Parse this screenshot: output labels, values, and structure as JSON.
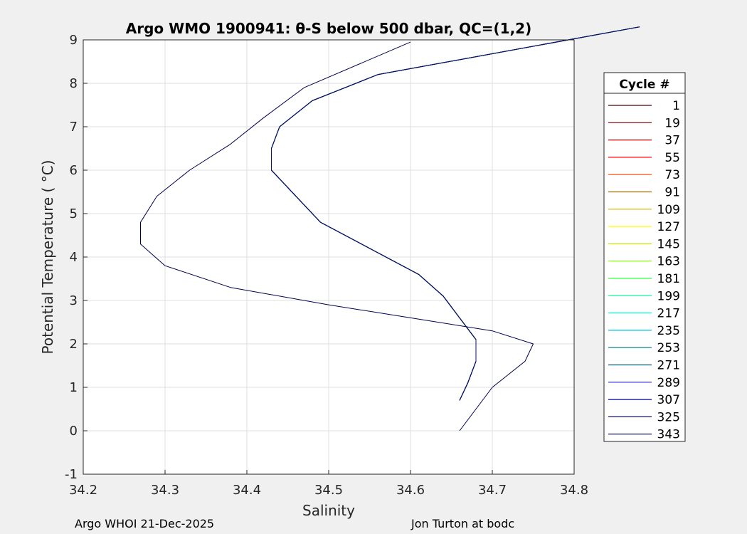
{
  "chart_data": {
    "type": "line",
    "title": "Argo WMO 1900941: θ-S below 500 dbar,  QC=(1,2)",
    "xlabel": "Salinity",
    "ylabel": "Potential Temperature ( °C)",
    "xlim": [
      34.2,
      34.8
    ],
    "ylim": [
      -1,
      9
    ],
    "xticks": [
      "34.2",
      "34.3",
      "34.4",
      "34.5",
      "34.6",
      "34.7",
      "34.8"
    ],
    "yticks": [
      "-1",
      "0",
      "1",
      "2",
      "3",
      "4",
      "5",
      "6",
      "7",
      "8",
      "9"
    ],
    "grid": true,
    "legend_title": "Cycle #",
    "legend_position": "right",
    "series": [
      {
        "name": "1",
        "color": "#500000",
        "s": [
          34.88,
          34.56,
          34.48,
          34.44,
          34.43,
          34.43,
          34.46,
          34.49,
          34.55,
          34.61,
          34.64,
          34.66,
          34.68,
          34.68,
          34.67,
          34.66
        ],
        "t": [
          9.3,
          8.2,
          7.6,
          7.0,
          6.5,
          6.0,
          5.4,
          4.8,
          4.2,
          3.6,
          3.1,
          2.6,
          2.1,
          1.6,
          1.1,
          0.7
        ]
      },
      {
        "name": "19",
        "color": "#7c0000",
        "s": [
          34.88,
          34.56,
          34.48,
          34.44,
          34.43,
          34.43,
          34.46,
          34.49,
          34.55,
          34.61,
          34.64,
          34.66,
          34.68,
          34.68,
          34.67,
          34.66
        ],
        "t": [
          9.3,
          8.2,
          7.6,
          7.0,
          6.5,
          6.0,
          5.4,
          4.8,
          4.2,
          3.6,
          3.1,
          2.6,
          2.1,
          1.6,
          1.1,
          0.7
        ]
      },
      {
        "name": "37",
        "color": "#c00000",
        "s": [
          34.88,
          34.56,
          34.48,
          34.44,
          34.43,
          34.43,
          34.46,
          34.49,
          34.55,
          34.61,
          34.64,
          34.66,
          34.68,
          34.68,
          34.67,
          34.66
        ],
        "t": [
          9.3,
          8.2,
          7.6,
          7.0,
          6.5,
          6.0,
          5.4,
          4.8,
          4.2,
          3.6,
          3.1,
          2.6,
          2.1,
          1.6,
          1.1,
          0.7
        ]
      },
      {
        "name": "55",
        "color": "#ff0000",
        "s": [
          34.88,
          34.56,
          34.48,
          34.44,
          34.43,
          34.43,
          34.46,
          34.49,
          34.55,
          34.61,
          34.64,
          34.66,
          34.68,
          34.68,
          34.67,
          34.66
        ],
        "t": [
          9.3,
          8.2,
          7.6,
          7.0,
          6.5,
          6.0,
          5.4,
          4.8,
          4.2,
          3.6,
          3.1,
          2.6,
          2.1,
          1.6,
          1.1,
          0.7
        ]
      },
      {
        "name": "73",
        "color": "#ff4000",
        "s": [
          34.88,
          34.56,
          34.48,
          34.44,
          34.43,
          34.43,
          34.46,
          34.49,
          34.55,
          34.61,
          34.64,
          34.66,
          34.68,
          34.68,
          34.67,
          34.66
        ],
        "t": [
          9.3,
          8.2,
          7.6,
          7.0,
          6.5,
          6.0,
          5.4,
          4.8,
          4.2,
          3.6,
          3.1,
          2.6,
          2.1,
          1.6,
          1.1,
          0.7
        ]
      },
      {
        "name": "91",
        "color": "#9c6a00",
        "s": [
          34.88,
          34.56,
          34.48,
          34.44,
          34.43,
          34.43,
          34.46,
          34.49,
          34.55,
          34.61,
          34.64,
          34.66,
          34.68,
          34.68,
          34.67,
          34.66
        ],
        "t": [
          9.3,
          8.2,
          7.6,
          7.0,
          6.5,
          6.0,
          5.4,
          4.8,
          4.2,
          3.6,
          3.1,
          2.6,
          2.1,
          1.6,
          1.1,
          0.7
        ]
      },
      {
        "name": "109",
        "color": "#d9b000",
        "s": [
          34.88,
          34.56,
          34.48,
          34.44,
          34.43,
          34.43,
          34.46,
          34.49,
          34.55,
          34.61,
          34.64,
          34.66,
          34.68,
          34.68,
          34.67,
          34.66
        ],
        "t": [
          9.3,
          8.2,
          7.6,
          7.0,
          6.5,
          6.0,
          5.4,
          4.8,
          4.2,
          3.6,
          3.1,
          2.6,
          2.1,
          1.6,
          1.1,
          0.7
        ]
      },
      {
        "name": "127",
        "color": "#ffff00",
        "s": [
          34.88,
          34.56,
          34.48,
          34.44,
          34.43,
          34.43,
          34.46,
          34.49,
          34.55,
          34.61,
          34.64,
          34.66,
          34.68,
          34.68,
          34.67,
          34.66
        ],
        "t": [
          9.3,
          8.2,
          7.6,
          7.0,
          6.5,
          6.0,
          5.4,
          4.8,
          4.2,
          3.6,
          3.1,
          2.6,
          2.1,
          1.6,
          1.1,
          0.7
        ]
      },
      {
        "name": "145",
        "color": "#c6e900",
        "s": [
          34.88,
          34.56,
          34.48,
          34.44,
          34.43,
          34.43,
          34.46,
          34.49,
          34.55,
          34.61,
          34.64,
          34.66,
          34.68,
          34.68,
          34.67,
          34.66
        ],
        "t": [
          9.3,
          8.2,
          7.6,
          7.0,
          6.5,
          6.0,
          5.4,
          4.8,
          4.2,
          3.6,
          3.1,
          2.6,
          2.1,
          1.6,
          1.1,
          0.7
        ]
      },
      {
        "name": "163",
        "color": "#80ff00",
        "s": [
          34.88,
          34.56,
          34.48,
          34.44,
          34.43,
          34.43,
          34.46,
          34.49,
          34.55,
          34.61,
          34.64,
          34.66,
          34.68,
          34.68,
          34.67,
          34.66
        ],
        "t": [
          9.3,
          8.2,
          7.6,
          7.0,
          6.5,
          6.0,
          5.4,
          4.8,
          4.2,
          3.6,
          3.1,
          2.6,
          2.1,
          1.6,
          1.1,
          0.7
        ]
      },
      {
        "name": "181",
        "color": "#30ff40",
        "s": [
          34.88,
          34.56,
          34.48,
          34.44,
          34.43,
          34.43,
          34.46,
          34.49,
          34.55,
          34.61,
          34.64,
          34.66,
          34.68,
          34.68,
          34.67,
          34.66
        ],
        "t": [
          9.3,
          8.2,
          7.6,
          7.0,
          6.5,
          6.0,
          5.4,
          4.8,
          4.2,
          3.6,
          3.1,
          2.6,
          2.1,
          1.6,
          1.1,
          0.7
        ]
      },
      {
        "name": "199",
        "color": "#00ff90",
        "s": [
          34.88,
          34.56,
          34.48,
          34.44,
          34.43,
          34.43,
          34.46,
          34.49,
          34.55,
          34.61,
          34.64,
          34.66,
          34.68,
          34.68,
          34.67,
          34.66
        ],
        "t": [
          9.3,
          8.2,
          7.6,
          7.0,
          6.5,
          6.0,
          5.4,
          4.8,
          4.2,
          3.6,
          3.1,
          2.6,
          2.1,
          1.6,
          1.1,
          0.7
        ]
      },
      {
        "name": "217",
        "color": "#00ffd8",
        "s": [
          34.88,
          34.56,
          34.48,
          34.44,
          34.43,
          34.43,
          34.46,
          34.49,
          34.55,
          34.61,
          34.64,
          34.66,
          34.68,
          34.68,
          34.67,
          34.66
        ],
        "t": [
          9.3,
          8.2,
          7.6,
          7.0,
          6.5,
          6.0,
          5.4,
          4.8,
          4.2,
          3.6,
          3.1,
          2.6,
          2.1,
          1.6,
          1.1,
          0.7
        ]
      },
      {
        "name": "235",
        "color": "#00c0e8",
        "s": [
          34.88,
          34.56,
          34.48,
          34.44,
          34.43,
          34.43,
          34.46,
          34.49,
          34.55,
          34.61,
          34.64,
          34.66,
          34.68,
          34.68,
          34.67,
          34.66
        ],
        "t": [
          9.3,
          8.2,
          7.6,
          7.0,
          6.5,
          6.0,
          5.4,
          4.8,
          4.2,
          3.6,
          3.1,
          2.6,
          2.1,
          1.6,
          1.1,
          0.7
        ]
      },
      {
        "name": "253",
        "color": "#007a8c",
        "s": [
          34.88,
          34.56,
          34.48,
          34.44,
          34.43,
          34.43,
          34.46,
          34.49,
          34.55,
          34.61,
          34.64,
          34.66,
          34.68,
          34.68,
          34.67,
          34.66
        ],
        "t": [
          9.3,
          8.2,
          7.6,
          7.0,
          6.5,
          6.0,
          5.4,
          4.8,
          4.2,
          3.6,
          3.1,
          2.6,
          2.1,
          1.6,
          1.1,
          0.7
        ]
      },
      {
        "name": "271",
        "color": "#005a78",
        "s": [
          34.88,
          34.56,
          34.48,
          34.44,
          34.43,
          34.43,
          34.46,
          34.49,
          34.55,
          34.61,
          34.64,
          34.66,
          34.68,
          34.68,
          34.67,
          34.66
        ],
        "t": [
          9.3,
          8.2,
          7.6,
          7.0,
          6.5,
          6.0,
          5.4,
          4.8,
          4.2,
          3.6,
          3.1,
          2.6,
          2.1,
          1.6,
          1.1,
          0.7
        ]
      },
      {
        "name": "289",
        "color": "#2020c8",
        "s": [
          34.88,
          34.56,
          34.48,
          34.44,
          34.43,
          34.43,
          34.46,
          34.49,
          34.55,
          34.61,
          34.64,
          34.66,
          34.68,
          34.68,
          34.67,
          34.66
        ],
        "t": [
          9.3,
          8.2,
          7.6,
          7.0,
          6.5,
          6.0,
          5.4,
          4.8,
          4.2,
          3.6,
          3.1,
          2.6,
          2.1,
          1.6,
          1.1,
          0.7
        ]
      },
      {
        "name": "307",
        "color": "#0000a0",
        "s": [
          34.88,
          34.56,
          34.48,
          34.44,
          34.43,
          34.43,
          34.46,
          34.49,
          34.55,
          34.61,
          34.64,
          34.66,
          34.68,
          34.68,
          34.67,
          34.66
        ],
        "t": [
          9.3,
          8.2,
          7.6,
          7.0,
          6.5,
          6.0,
          5.4,
          4.8,
          4.2,
          3.6,
          3.1,
          2.6,
          2.1,
          1.6,
          1.1,
          0.7
        ]
      },
      {
        "name": "325",
        "color": "#101060",
        "s": [
          34.88,
          34.56,
          34.48,
          34.44,
          34.43,
          34.43,
          34.46,
          34.49,
          34.55,
          34.61,
          34.64,
          34.66,
          34.68,
          34.68,
          34.67,
          34.66
        ],
        "t": [
          9.3,
          8.2,
          7.6,
          7.0,
          6.5,
          6.0,
          5.4,
          4.8,
          4.2,
          3.6,
          3.1,
          2.6,
          2.1,
          1.6,
          1.1,
          0.7
        ]
      },
      {
        "name": "343",
        "color": "#000050",
        "s": [
          34.6,
          34.47,
          34.42,
          34.38,
          34.33,
          34.29,
          34.27,
          34.27,
          34.3,
          34.38,
          34.5,
          34.6,
          34.7,
          34.75,
          34.74,
          34.7,
          34.66
        ],
        "t": [
          8.95,
          7.9,
          7.2,
          6.6,
          6.0,
          5.4,
          4.8,
          4.3,
          3.8,
          3.3,
          2.9,
          2.6,
          2.3,
          2.0,
          1.6,
          1.0,
          0.0
        ]
      }
    ]
  },
  "footer": {
    "left": "Argo WHOI 21-Dec-2025",
    "right": "Jon Turton at bodc"
  }
}
